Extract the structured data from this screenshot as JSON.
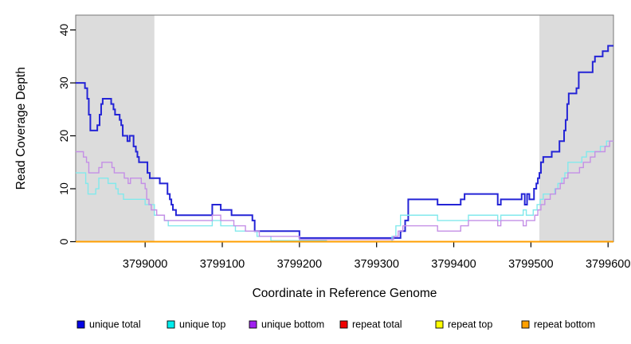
{
  "figure": {
    "xlabel": "Coordinate in Reference Genome",
    "ylabel": "Read Coverage Depth"
  },
  "chart_data": {
    "type": "line",
    "step": true,
    "title": "",
    "xlabel": "Coordinate in Reference Genome",
    "ylabel": "Read Coverage Depth",
    "xlim": [
      3798910,
      3799607
    ],
    "ylim": [
      0,
      42.8
    ],
    "xticks": [
      3799000,
      3799100,
      3799200,
      3799300,
      3799400,
      3799500,
      3799600
    ],
    "yticks": [
      0,
      10,
      20,
      30,
      40
    ],
    "grid": false,
    "legend_position": "bottom",
    "plot_box_color": "#777777",
    "axis_color": "#000000",
    "shaded_regions": [
      {
        "name": "left-repeat-region",
        "x0": 3798910,
        "x1": 3799012,
        "color": "#DCDCDC"
      },
      {
        "name": "right-repeat-region",
        "x0": 3799511,
        "x1": 3799607,
        "color": "#DCDCDC"
      }
    ],
    "series": [
      {
        "name": "unique total",
        "line_color": "#2424D6",
        "legend_color": "#0505E5",
        "width": 2,
        "points": [
          [
            3798910,
            30
          ],
          [
            3798922,
            29
          ],
          [
            3798925,
            27
          ],
          [
            3798927,
            24
          ],
          [
            3798929,
            21
          ],
          [
            3798938,
            22
          ],
          [
            3798941,
            24
          ],
          [
            3798943,
            26
          ],
          [
            3798945,
            27
          ],
          [
            3798956,
            26
          ],
          [
            3798959,
            25
          ],
          [
            3798961,
            24
          ],
          [
            3798967,
            23
          ],
          [
            3798969,
            22
          ],
          [
            3798971,
            20
          ],
          [
            3798977,
            19
          ],
          [
            3798980,
            20
          ],
          [
            3798985,
            18
          ],
          [
            3798988,
            17
          ],
          [
            3798990,
            16
          ],
          [
            3798992,
            15
          ],
          [
            3799003,
            13
          ],
          [
            3799006,
            12
          ],
          [
            3799019,
            11
          ],
          [
            3799029,
            9
          ],
          [
            3799032,
            8
          ],
          [
            3799034,
            7
          ],
          [
            3799036,
            6
          ],
          [
            3799040,
            5
          ],
          [
            3799087,
            7
          ],
          [
            3799098,
            6
          ],
          [
            3799112,
            5
          ],
          [
            3799139,
            4
          ],
          [
            3799142,
            2
          ],
          [
            3799200,
            0.7
          ],
          [
            3799331,
            2
          ],
          [
            3799337,
            4
          ],
          [
            3799341,
            8
          ],
          [
            3799379,
            7
          ],
          [
            3799409,
            8
          ],
          [
            3799414,
            9
          ],
          [
            3799457,
            7
          ],
          [
            3799461,
            8
          ],
          [
            3799488,
            9
          ],
          [
            3799492,
            7
          ],
          [
            3799495,
            9
          ],
          [
            3799498,
            8
          ],
          [
            3799504,
            10
          ],
          [
            3799507,
            11
          ],
          [
            3799509,
            12
          ],
          [
            3799511,
            13
          ],
          [
            3799513,
            15
          ],
          [
            3799516,
            16
          ],
          [
            3799527,
            17
          ],
          [
            3799537,
            19
          ],
          [
            3799543,
            21
          ],
          [
            3799545,
            23
          ],
          [
            3799547,
            26
          ],
          [
            3799549,
            28
          ],
          [
            3799559,
            29
          ],
          [
            3799562,
            32
          ],
          [
            3799580,
            34
          ],
          [
            3799583,
            35
          ],
          [
            3799593,
            36
          ],
          [
            3799600,
            37
          ]
        ]
      },
      {
        "name": "unique top",
        "line_color": "#82E9EC",
        "legend_color": "#00EEEE",
        "width": 1.4,
        "points": [
          [
            3798910,
            13
          ],
          [
            3798923,
            11
          ],
          [
            3798926,
            9
          ],
          [
            3798936,
            10
          ],
          [
            3798940,
            12
          ],
          [
            3798952,
            11
          ],
          [
            3798962,
            10
          ],
          [
            3798965,
            9
          ],
          [
            3798972,
            8
          ],
          [
            3799000,
            7
          ],
          [
            3799012,
            5
          ],
          [
            3799025,
            4
          ],
          [
            3799030,
            3
          ],
          [
            3799087,
            4
          ],
          [
            3799098,
            3
          ],
          [
            3799117,
            2
          ],
          [
            3799145,
            1
          ],
          [
            3799163,
            0.2
          ],
          [
            3799235,
            0
          ],
          [
            3799320,
            1
          ],
          [
            3799325,
            3
          ],
          [
            3799331,
            5
          ],
          [
            3799379,
            4
          ],
          [
            3799419,
            5
          ],
          [
            3799457,
            4
          ],
          [
            3799461,
            5
          ],
          [
            3799490,
            6
          ],
          [
            3799494,
            5
          ],
          [
            3799503,
            6
          ],
          [
            3799508,
            7
          ],
          [
            3799512,
            8
          ],
          [
            3799516,
            9
          ],
          [
            3799531,
            10
          ],
          [
            3799535,
            11
          ],
          [
            3799540,
            12
          ],
          [
            3799544,
            13
          ],
          [
            3799548,
            15
          ],
          [
            3799566,
            16
          ],
          [
            3799572,
            17
          ],
          [
            3799590,
            18
          ],
          [
            3799598,
            19
          ]
        ]
      },
      {
        "name": "unique bottom",
        "line_color": "#C48FE6",
        "legend_color": "#A020F0",
        "width": 1.4,
        "points": [
          [
            3798910,
            17
          ],
          [
            3798920,
            16
          ],
          [
            3798924,
            15
          ],
          [
            3798927,
            13
          ],
          [
            3798940,
            14
          ],
          [
            3798944,
            15
          ],
          [
            3798957,
            14
          ],
          [
            3798960,
            13
          ],
          [
            3798973,
            12
          ],
          [
            3798978,
            11
          ],
          [
            3798981,
            12
          ],
          [
            3798995,
            11
          ],
          [
            3799000,
            10
          ],
          [
            3799002,
            8
          ],
          [
            3799005,
            7
          ],
          [
            3799008,
            6
          ],
          [
            3799015,
            5
          ],
          [
            3799025,
            4
          ],
          [
            3799087,
            5
          ],
          [
            3799098,
            4
          ],
          [
            3799115,
            3
          ],
          [
            3799130,
            2
          ],
          [
            3799148,
            1
          ],
          [
            3799200,
            0.4
          ],
          [
            3799322,
            1
          ],
          [
            3799328,
            2
          ],
          [
            3799334,
            3
          ],
          [
            3799379,
            2
          ],
          [
            3799409,
            3
          ],
          [
            3799419,
            4
          ],
          [
            3799457,
            3
          ],
          [
            3799461,
            4
          ],
          [
            3799490,
            3
          ],
          [
            3799494,
            4
          ],
          [
            3799505,
            5
          ],
          [
            3799509,
            6
          ],
          [
            3799513,
            7
          ],
          [
            3799518,
            8
          ],
          [
            3799525,
            9
          ],
          [
            3799532,
            10
          ],
          [
            3799538,
            11
          ],
          [
            3799543,
            12
          ],
          [
            3799548,
            13
          ],
          [
            3799563,
            14
          ],
          [
            3799568,
            15
          ],
          [
            3799577,
            16
          ],
          [
            3799583,
            17
          ],
          [
            3799596,
            18
          ],
          [
            3799602,
            19
          ]
        ]
      },
      {
        "name": "repeat total",
        "line_color": "#E60000",
        "legend_color": "#F00000",
        "width": 1.2,
        "points": [
          [
            3798910,
            0
          ]
        ]
      },
      {
        "name": "repeat top",
        "line_color": "#FFFF00",
        "legend_color": "#FFFF00",
        "width": 1.2,
        "points": [
          [
            3798910,
            0
          ]
        ]
      },
      {
        "name": "repeat bottom",
        "line_color": "#FF9F00",
        "legend_color": "#FFA000",
        "width": 2,
        "points": [
          [
            3798910,
            0
          ]
        ]
      }
    ]
  }
}
